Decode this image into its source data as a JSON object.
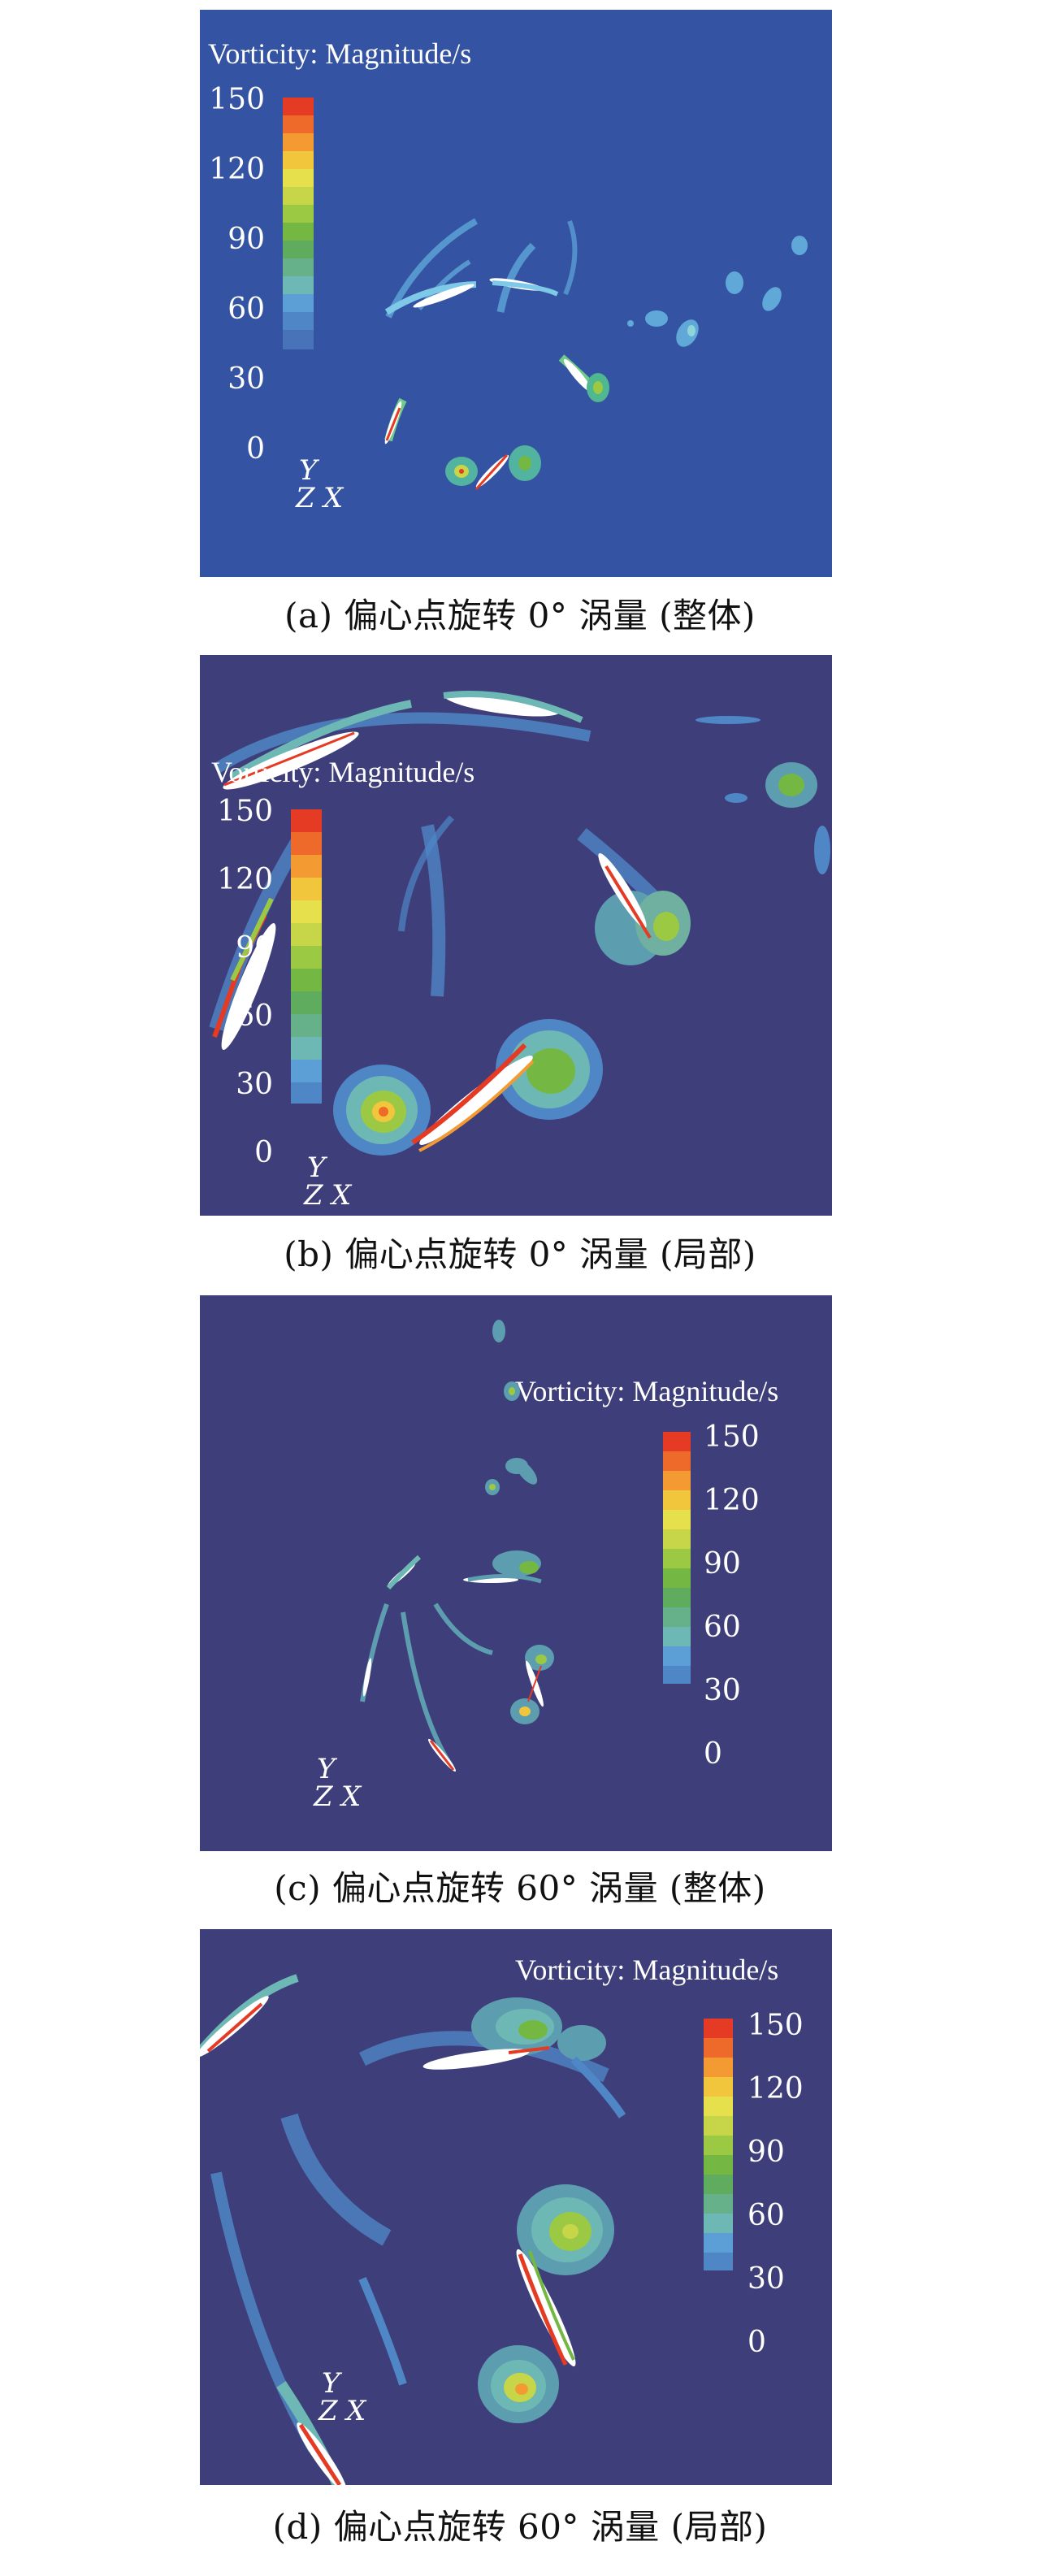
{
  "colorbar": {
    "title": "Vorticity: Magnitude/s",
    "ticks": [
      "150",
      "120",
      "90",
      "60",
      "30",
      "0"
    ],
    "colors": [
      "#e53a23",
      "#ee6a2a",
      "#f39a33",
      "#f1c63c",
      "#e6e04c",
      "#c7d648",
      "#9cc944",
      "#74b843",
      "#5fac5e",
      "#66b08a",
      "#6db8b4",
      "#5c9fd6",
      "#4f86c6"
    ]
  },
  "axes_labels": {
    "y": "Y",
    "z": "Z",
    "x": "X"
  },
  "panels": [
    {
      "id": "a",
      "caption": "(a) 偏心点旋转 0° 涡量 (整体)",
      "background": "#3553a3"
    },
    {
      "id": "b",
      "caption": "(b) 偏心点旋转 0° 涡量 (局部)",
      "background": "#3e3e7a"
    },
    {
      "id": "c",
      "caption": "(c) 偏心点旋转 60° 涡量 (整体)",
      "background": "#3e3e7a"
    },
    {
      "id": "d",
      "caption": "(d) 偏心点旋转 60° 涡量 (局部)",
      "background": "#3e3e7a"
    }
  ]
}
